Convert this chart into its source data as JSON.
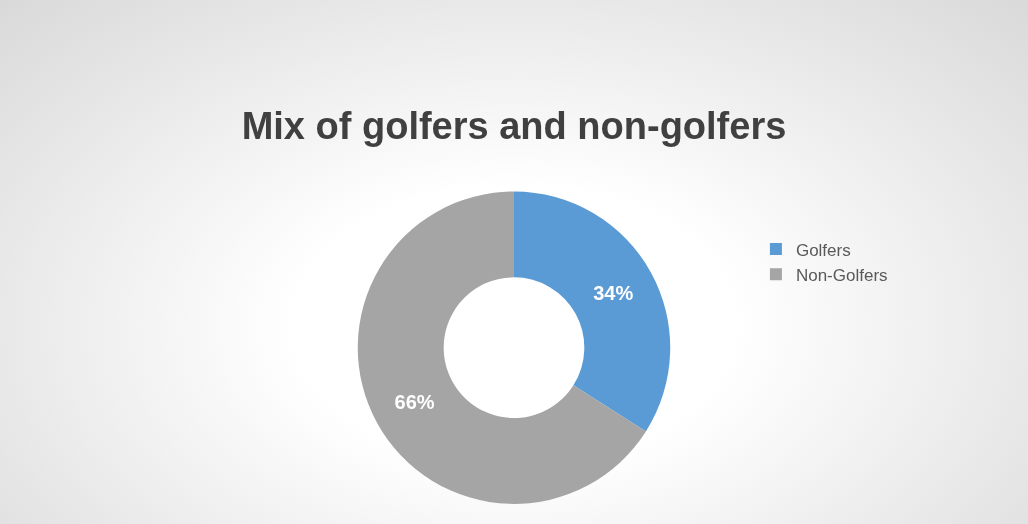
{
  "chart_data": {
    "type": "donut",
    "title": "Mix of golfers and non-golfers",
    "categories": [
      "Golfers",
      "Non-Golfers"
    ],
    "values": [
      34,
      66
    ],
    "colors": [
      "#5b9bd5",
      "#a5a5a5"
    ],
    "value_labels": [
      "34%",
      "66%"
    ],
    "legend": "right"
  }
}
